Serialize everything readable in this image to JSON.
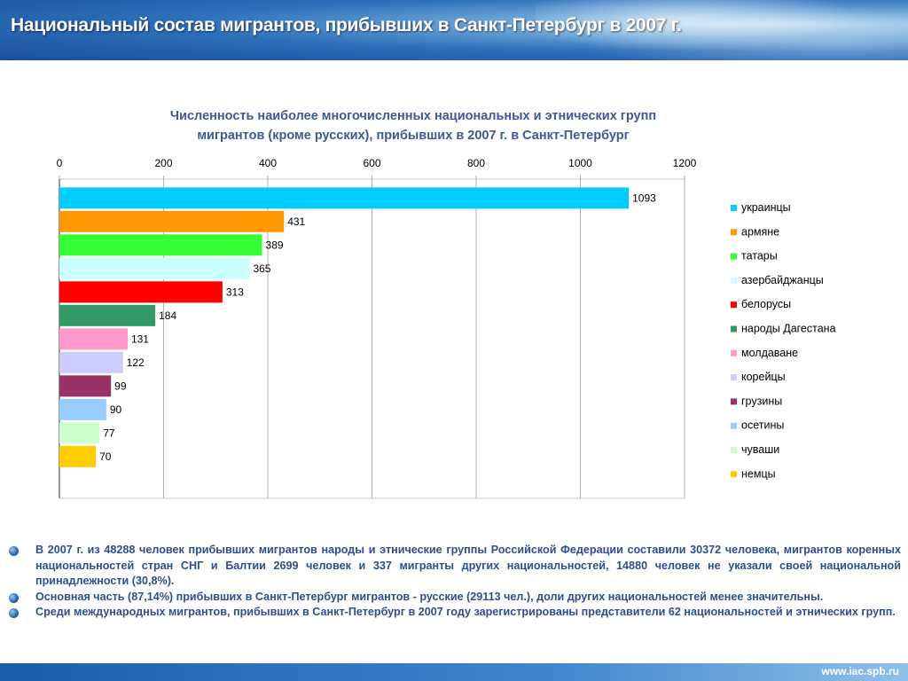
{
  "header": {
    "title": "Национальный состав мигрантов, прибывших в Санкт-Петербург в 2007 г."
  },
  "chart_data": {
    "type": "bar",
    "orientation": "horizontal",
    "title": "Численность наиболее многочисленных национальных и этнических групп мигрантов  (кроме русских), прибывших в 2007 г. в Санкт-Петербург",
    "title_lines": [
      "Численность наиболее многочисленных национальных и этнических групп",
      "мигрантов  (кроме русских), прибывших в 2007 г. в Санкт-Петербург"
    ],
    "categories": [
      "украинцы",
      "армяне",
      "татары",
      "азербайджанцы",
      "белорусы",
      "народы Дагестана",
      "молдаване",
      "корейцы",
      "грузины",
      "осетины",
      "чуваши",
      "немцы"
    ],
    "values": [
      1093,
      431,
      389,
      365,
      313,
      184,
      131,
      122,
      99,
      90,
      77,
      70
    ],
    "colors": [
      "#00ccff",
      "#ff9900",
      "#33ff33",
      "#ccffff",
      "#ff0000",
      "#339966",
      "#ff99cc",
      "#ccccff",
      "#993366",
      "#99ccff",
      "#ccffcc",
      "#ffcc00"
    ],
    "xlim": [
      0,
      1200
    ],
    "xticks": [
      0,
      200,
      400,
      600,
      800,
      1000,
      1200
    ],
    "xticks_position": "top",
    "grid": true,
    "legend": "right",
    "data_labels": true
  },
  "bullets": [
    "В 2007 г. из 48288 человек прибывших мигрантов народы и этнические группы Российской Федерации составили 30372 человека, мигрантов коренных национальностей стран СНГ и Балтии 2699 человек и 337 мигранты других национальностей, 14880 человек не указали своей национальной принадлежности (30,8%).",
    "Основная часть (87,14%) прибывших в Санкт-Петербург мигрантов - русские (29113 чел.), доли других национальностей менее значительны.",
    "Среди международных мигрантов, прибывших в Санкт-Петербург в 2007 году зарегистрированы представители 62 национальностей и этнических групп."
  ],
  "footer": {
    "url": "www.iac.spb.ru"
  }
}
